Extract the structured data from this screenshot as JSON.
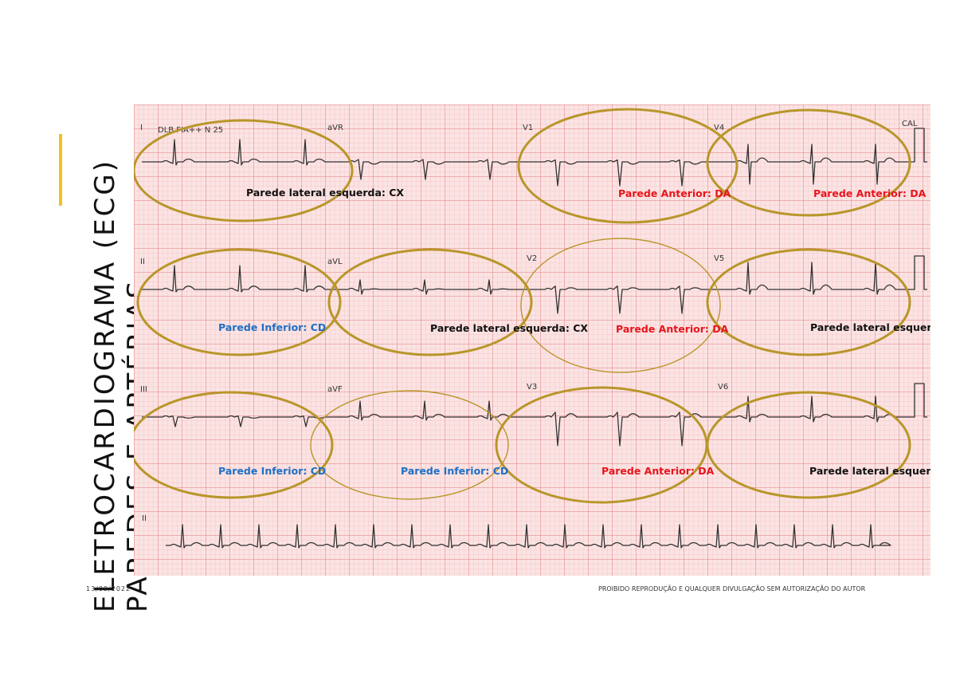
{
  "slide": {
    "title_line1": "ELETROCARDIOGRAMA (ECG)",
    "title_line2": "PAREDES E ARTÉRIAS",
    "date": "13/09/2022",
    "footer": "PROIBIDO REPRODUÇÃO E QUALQUER DIVULGAÇÃO SEM AUTORIZAÇÃO DO AUTOR"
  },
  "ecg": {
    "header_text": "DLB FIA++ N 25",
    "cal_label": "CAL",
    "leads": [
      "I",
      "aVR",
      "V1",
      "V4",
      "II",
      "aVL",
      "V2",
      "V5",
      "III",
      "aVF",
      "V3",
      "V6",
      "II"
    ],
    "annotations": [
      {
        "text": "Parede lateral esquerda: CX",
        "color": "#111111"
      },
      {
        "text": "Parede Anterior: DA",
        "color": "#e8141c"
      },
      {
        "text": "Parede Anterior: DA",
        "color": "#e8141c"
      },
      {
        "text": "Parede Inferior: CD",
        "color": "#1f6fc5"
      },
      {
        "text": "Parede lateral esquerda: CX",
        "color": "#111111"
      },
      {
        "text": "Parede Anterior: DA",
        "color": "#e8141c"
      },
      {
        "text": "Parede lateral esquerda: CX",
        "color": "#111111"
      },
      {
        "text": "Parede Inferior: CD",
        "color": "#1f6fc5"
      },
      {
        "text": "Parede Inferior: CD",
        "color": "#1f6fc5"
      },
      {
        "text": "Parede Anterior: DA",
        "color": "#e8141c"
      },
      {
        "text": "Parede lateral esquerda: CX",
        "color": "#111111"
      }
    ],
    "colors": {
      "paper": "#fbe3e3",
      "grid_minor": "#f1b3b3",
      "grid_major": "#e27b7b",
      "ellipse": "#b8962a",
      "accent": "#f2c21b"
    }
  }
}
